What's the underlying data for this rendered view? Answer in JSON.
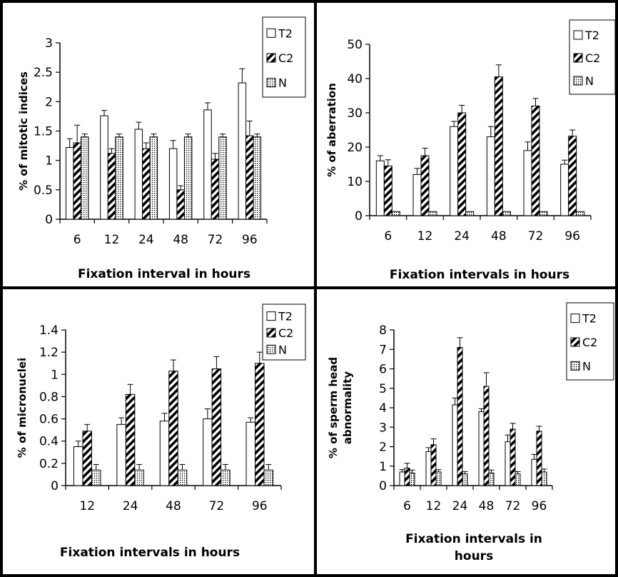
{
  "chart_data": [
    {
      "type": "bar",
      "xlabel": "Fixation interval in hours",
      "ylabel": "% of mitotic indices",
      "ylim": [
        0,
        3
      ],
      "yticks": [
        "0",
        "0.5",
        "1",
        "1.5",
        "2",
        "2.5",
        "3"
      ],
      "categories": [
        "6",
        "12",
        "24",
        "48",
        "72",
        "96"
      ],
      "legend": "top-right",
      "series": [
        {
          "name": "T2",
          "pattern": "empty",
          "values": [
            1.22,
            1.76,
            1.53,
            1.2,
            1.86,
            2.32
          ],
          "errors": [
            0.15,
            0.09,
            0.12,
            0.14,
            0.12,
            0.24
          ]
        },
        {
          "name": "C2",
          "pattern": "hatch",
          "values": [
            1.3,
            1.12,
            1.2,
            0.5,
            1.02,
            1.42
          ],
          "errors": [
            0.3,
            0.08,
            0.1,
            0.07,
            0.1,
            0.25
          ]
        },
        {
          "name": "N",
          "pattern": "dots",
          "values": [
            1.4,
            1.4,
            1.4,
            1.4,
            1.4,
            1.4
          ],
          "errors": [
            0.05,
            0.05,
            0.05,
            0.05,
            0.05,
            0.05
          ]
        }
      ]
    },
    {
      "type": "bar",
      "xlabel": "Fixation intervals in hours",
      "ylabel": "% of aberration",
      "ylim": [
        0,
        50
      ],
      "yticks": [
        "0",
        "10",
        "20",
        "30",
        "40",
        "50"
      ],
      "categories": [
        "6",
        "12",
        "24",
        "48",
        "72",
        "96"
      ],
      "legend": "top-right",
      "series": [
        {
          "name": "T2",
          "pattern": "empty",
          "values": [
            16,
            12,
            26,
            23,
            19,
            15
          ],
          "errors": [
            1.5,
            1.8,
            1.5,
            3,
            2.5,
            1.2
          ]
        },
        {
          "name": "C2",
          "pattern": "hatch",
          "values": [
            14.5,
            17.5,
            30,
            40.5,
            32,
            23.2
          ],
          "errors": [
            1.8,
            2.2,
            2.2,
            3.5,
            2.2,
            1.8
          ]
        },
        {
          "name": "N",
          "pattern": "dots",
          "values": [
            1.2,
            1.2,
            1.2,
            1.2,
            1.2,
            1.2
          ],
          "errors": [
            0,
            0,
            0,
            0,
            0,
            0
          ]
        }
      ]
    },
    {
      "type": "bar",
      "xlabel": "Fixation intervals in hours",
      "ylabel": "% of micronuclei",
      "ylim": [
        0,
        1.4
      ],
      "yticks": [
        "0",
        "0.2",
        "0.4",
        "0.6",
        "0.8",
        "1",
        "1.2",
        "1.4"
      ],
      "categories": [
        "12",
        "24",
        "48",
        "72",
        "96"
      ],
      "legend": "top-right",
      "series": [
        {
          "name": "T2",
          "pattern": "empty",
          "values": [
            0.35,
            0.55,
            0.58,
            0.6,
            0.57
          ],
          "errors": [
            0.05,
            0.06,
            0.07,
            0.09,
            0.04
          ]
        },
        {
          "name": "C2",
          "pattern": "hatch",
          "values": [
            0.49,
            0.82,
            1.03,
            1.05,
            1.1
          ],
          "errors": [
            0.06,
            0.09,
            0.1,
            0.11,
            0.1
          ]
        },
        {
          "name": "N",
          "pattern": "dots",
          "values": [
            0.14,
            0.14,
            0.14,
            0.14,
            0.14
          ],
          "errors": [
            0.05,
            0.05,
            0.05,
            0.05,
            0.05
          ]
        }
      ]
    },
    {
      "type": "bar",
      "xlabel": "Fixation intervals in hours",
      "ylabel": "% of sperm head abnormality",
      "ylim": [
        0,
        8
      ],
      "yticks": [
        "0",
        "1",
        "2",
        "3",
        "4",
        "5",
        "6",
        "7",
        "8"
      ],
      "categories": [
        "6",
        "12",
        "24",
        "48",
        "72",
        "96"
      ],
      "legend": "top-right",
      "series": [
        {
          "name": "T2",
          "pattern": "empty",
          "values": [
            0.7,
            1.75,
            4.15,
            3.8,
            2.25,
            1.35
          ],
          "errors": [
            0.12,
            0.2,
            0.35,
            0.15,
            0.35,
            0.25
          ]
        },
        {
          "name": "C2",
          "pattern": "hatch",
          "values": [
            0.9,
            2.1,
            7.1,
            5.1,
            2.9,
            2.8
          ],
          "errors": [
            0.25,
            0.3,
            0.5,
            0.7,
            0.3,
            0.25
          ]
        },
        {
          "name": "N",
          "pattern": "dots",
          "values": [
            0.65,
            0.7,
            0.6,
            0.65,
            0.6,
            0.7
          ],
          "errors": [
            0.15,
            0.12,
            0.12,
            0.15,
            0.12,
            0.15
          ]
        }
      ]
    }
  ]
}
